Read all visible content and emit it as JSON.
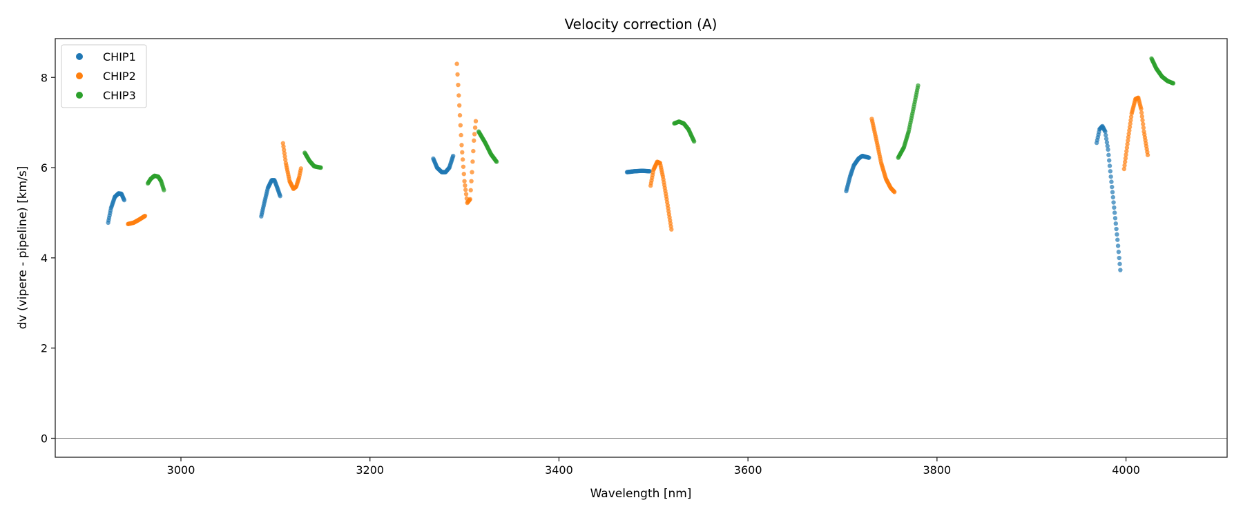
{
  "chart_data": {
    "type": "scatter",
    "title": "Velocity correction (A)",
    "xlabel": "Wavelength [nm]",
    "ylabel": "dv (vipere - pipeline) [km/s]",
    "xlim": [
      2867,
      4107
    ],
    "ylim": [
      -0.42,
      8.86
    ],
    "xticks": [
      3000,
      3200,
      3400,
      3600,
      3800,
      4000
    ],
    "yticks": [
      0,
      2,
      4,
      6,
      8
    ],
    "hline": 0,
    "grid": false,
    "legend_position": "top-left",
    "series": [
      {
        "name": "CHIP1",
        "color": "#1f77b4",
        "segments": [
          {
            "step": 0.5,
            "points": [
              [
                2923,
                4.78
              ],
              [
                2926,
                5.1
              ],
              [
                2930,
                5.35
              ],
              [
                2934,
                5.43
              ],
              [
                2937,
                5.42
              ],
              [
                2940,
                5.28
              ]
            ]
          },
          {
            "step": 0.5,
            "points": [
              [
                3085,
                4.92
              ],
              [
                3088,
                5.2
              ],
              [
                3092,
                5.55
              ],
              [
                3096,
                5.72
              ],
              [
                3099,
                5.72
              ],
              [
                3102,
                5.55
              ],
              [
                3105,
                5.37
              ]
            ]
          },
          {
            "step": 0.5,
            "points": [
              [
                3267,
                6.2
              ],
              [
                3271,
                6.0
              ],
              [
                3276,
                5.9
              ],
              [
                3280,
                5.9
              ],
              [
                3284,
                6.0
              ],
              [
                3288,
                6.26
              ]
            ]
          },
          {
            "step": 0.5,
            "points": [
              [
                3472,
                5.9
              ],
              [
                3480,
                5.92
              ],
              [
                3488,
                5.93
              ],
              [
                3496,
                5.92
              ]
            ]
          },
          {
            "step": 0.5,
            "points": [
              [
                3704,
                5.48
              ],
              [
                3708,
                5.8
              ],
              [
                3712,
                6.05
              ],
              [
                3717,
                6.2
              ],
              [
                3721,
                6.26
              ],
              [
                3728,
                6.22
              ]
            ]
          },
          {
            "step": 0.6,
            "points": [
              [
                3969,
                6.55
              ],
              [
                3972,
                6.85
              ],
              [
                3975,
                6.92
              ],
              [
                3978,
                6.8
              ],
              [
                3981,
                6.4
              ],
              [
                3984,
                5.8
              ],
              [
                3988,
                5.0
              ],
              [
                3991,
                4.4
              ],
              [
                3994,
                3.73
              ]
            ]
          }
        ]
      },
      {
        "name": "CHIP2",
        "color": "#ff7f0e",
        "segments": [
          {
            "step": 0.5,
            "points": [
              [
                2944,
                4.75
              ],
              [
                2950,
                4.78
              ],
              [
                2956,
                4.85
              ],
              [
                2962,
                4.93
              ]
            ]
          },
          {
            "step": 0.5,
            "points": [
              [
                3108,
                6.54
              ],
              [
                3111,
                6.1
              ],
              [
                3115,
                5.7
              ],
              [
                3119,
                5.53
              ],
              [
                3122,
                5.58
              ],
              [
                3125,
                5.78
              ],
              [
                3127,
                5.98
              ]
            ]
          },
          {
            "step": 0.6,
            "points": [
              [
                3292,
                8.3
              ],
              [
                3294,
                7.6
              ],
              [
                3297,
                6.5
              ],
              [
                3300,
                5.7
              ],
              [
                3303,
                5.22
              ],
              [
                3306,
                5.3
              ],
              [
                3308,
                5.9
              ],
              [
                3310,
                6.6
              ],
              [
                3312,
                7.03
              ]
            ]
          },
          {
            "step": 0.5,
            "points": [
              [
                3497,
                5.6
              ],
              [
                3500,
                5.95
              ],
              [
                3504,
                6.13
              ],
              [
                3507,
                6.1
              ],
              [
                3510,
                5.8
              ],
              [
                3514,
                5.3
              ],
              [
                3519,
                4.63
              ]
            ]
          },
          {
            "step": 0.5,
            "points": [
              [
                3731,
                7.08
              ],
              [
                3736,
                6.6
              ],
              [
                3741,
                6.1
              ],
              [
                3746,
                5.75
              ],
              [
                3751,
                5.55
              ],
              [
                3755,
                5.46
              ]
            ]
          },
          {
            "step": 0.5,
            "points": [
              [
                3998,
                5.97
              ],
              [
                4002,
                6.6
              ],
              [
                4006,
                7.2
              ],
              [
                4010,
                7.52
              ],
              [
                4013,
                7.55
              ],
              [
                4016,
                7.3
              ],
              [
                4019,
                6.8
              ],
              [
                4023,
                6.28
              ]
            ]
          }
        ]
      },
      {
        "name": "CHIP3",
        "color": "#2ca02c",
        "segments": [
          {
            "step": 0.5,
            "points": [
              [
                2965,
                5.65
              ],
              [
                2968,
                5.75
              ],
              [
                2972,
                5.82
              ],
              [
                2976,
                5.8
              ],
              [
                2979,
                5.7
              ],
              [
                2982,
                5.5
              ]
            ]
          },
          {
            "step": 0.5,
            "points": [
              [
                3131,
                6.33
              ],
              [
                3136,
                6.15
              ],
              [
                3141,
                6.03
              ],
              [
                3148,
                6.0
              ]
            ]
          },
          {
            "step": 0.5,
            "points": [
              [
                3315,
                6.8
              ],
              [
                3322,
                6.55
              ],
              [
                3328,
                6.3
              ],
              [
                3334,
                6.13
              ]
            ]
          },
          {
            "step": 0.5,
            "points": [
              [
                3522,
                6.98
              ],
              [
                3527,
                7.02
              ],
              [
                3532,
                6.98
              ],
              [
                3537,
                6.85
              ],
              [
                3543,
                6.58
              ]
            ]
          },
          {
            "step": 0.5,
            "points": [
              [
                3759,
                6.22
              ],
              [
                3765,
                6.45
              ],
              [
                3770,
                6.8
              ],
              [
                3775,
                7.3
              ],
              [
                3780,
                7.82
              ]
            ]
          },
          {
            "step": 0.5,
            "points": [
              [
                4027,
                8.42
              ],
              [
                4032,
                8.2
              ],
              [
                4038,
                8.02
              ],
              [
                4044,
                7.92
              ],
              [
                4050,
                7.87
              ]
            ]
          }
        ]
      }
    ]
  }
}
